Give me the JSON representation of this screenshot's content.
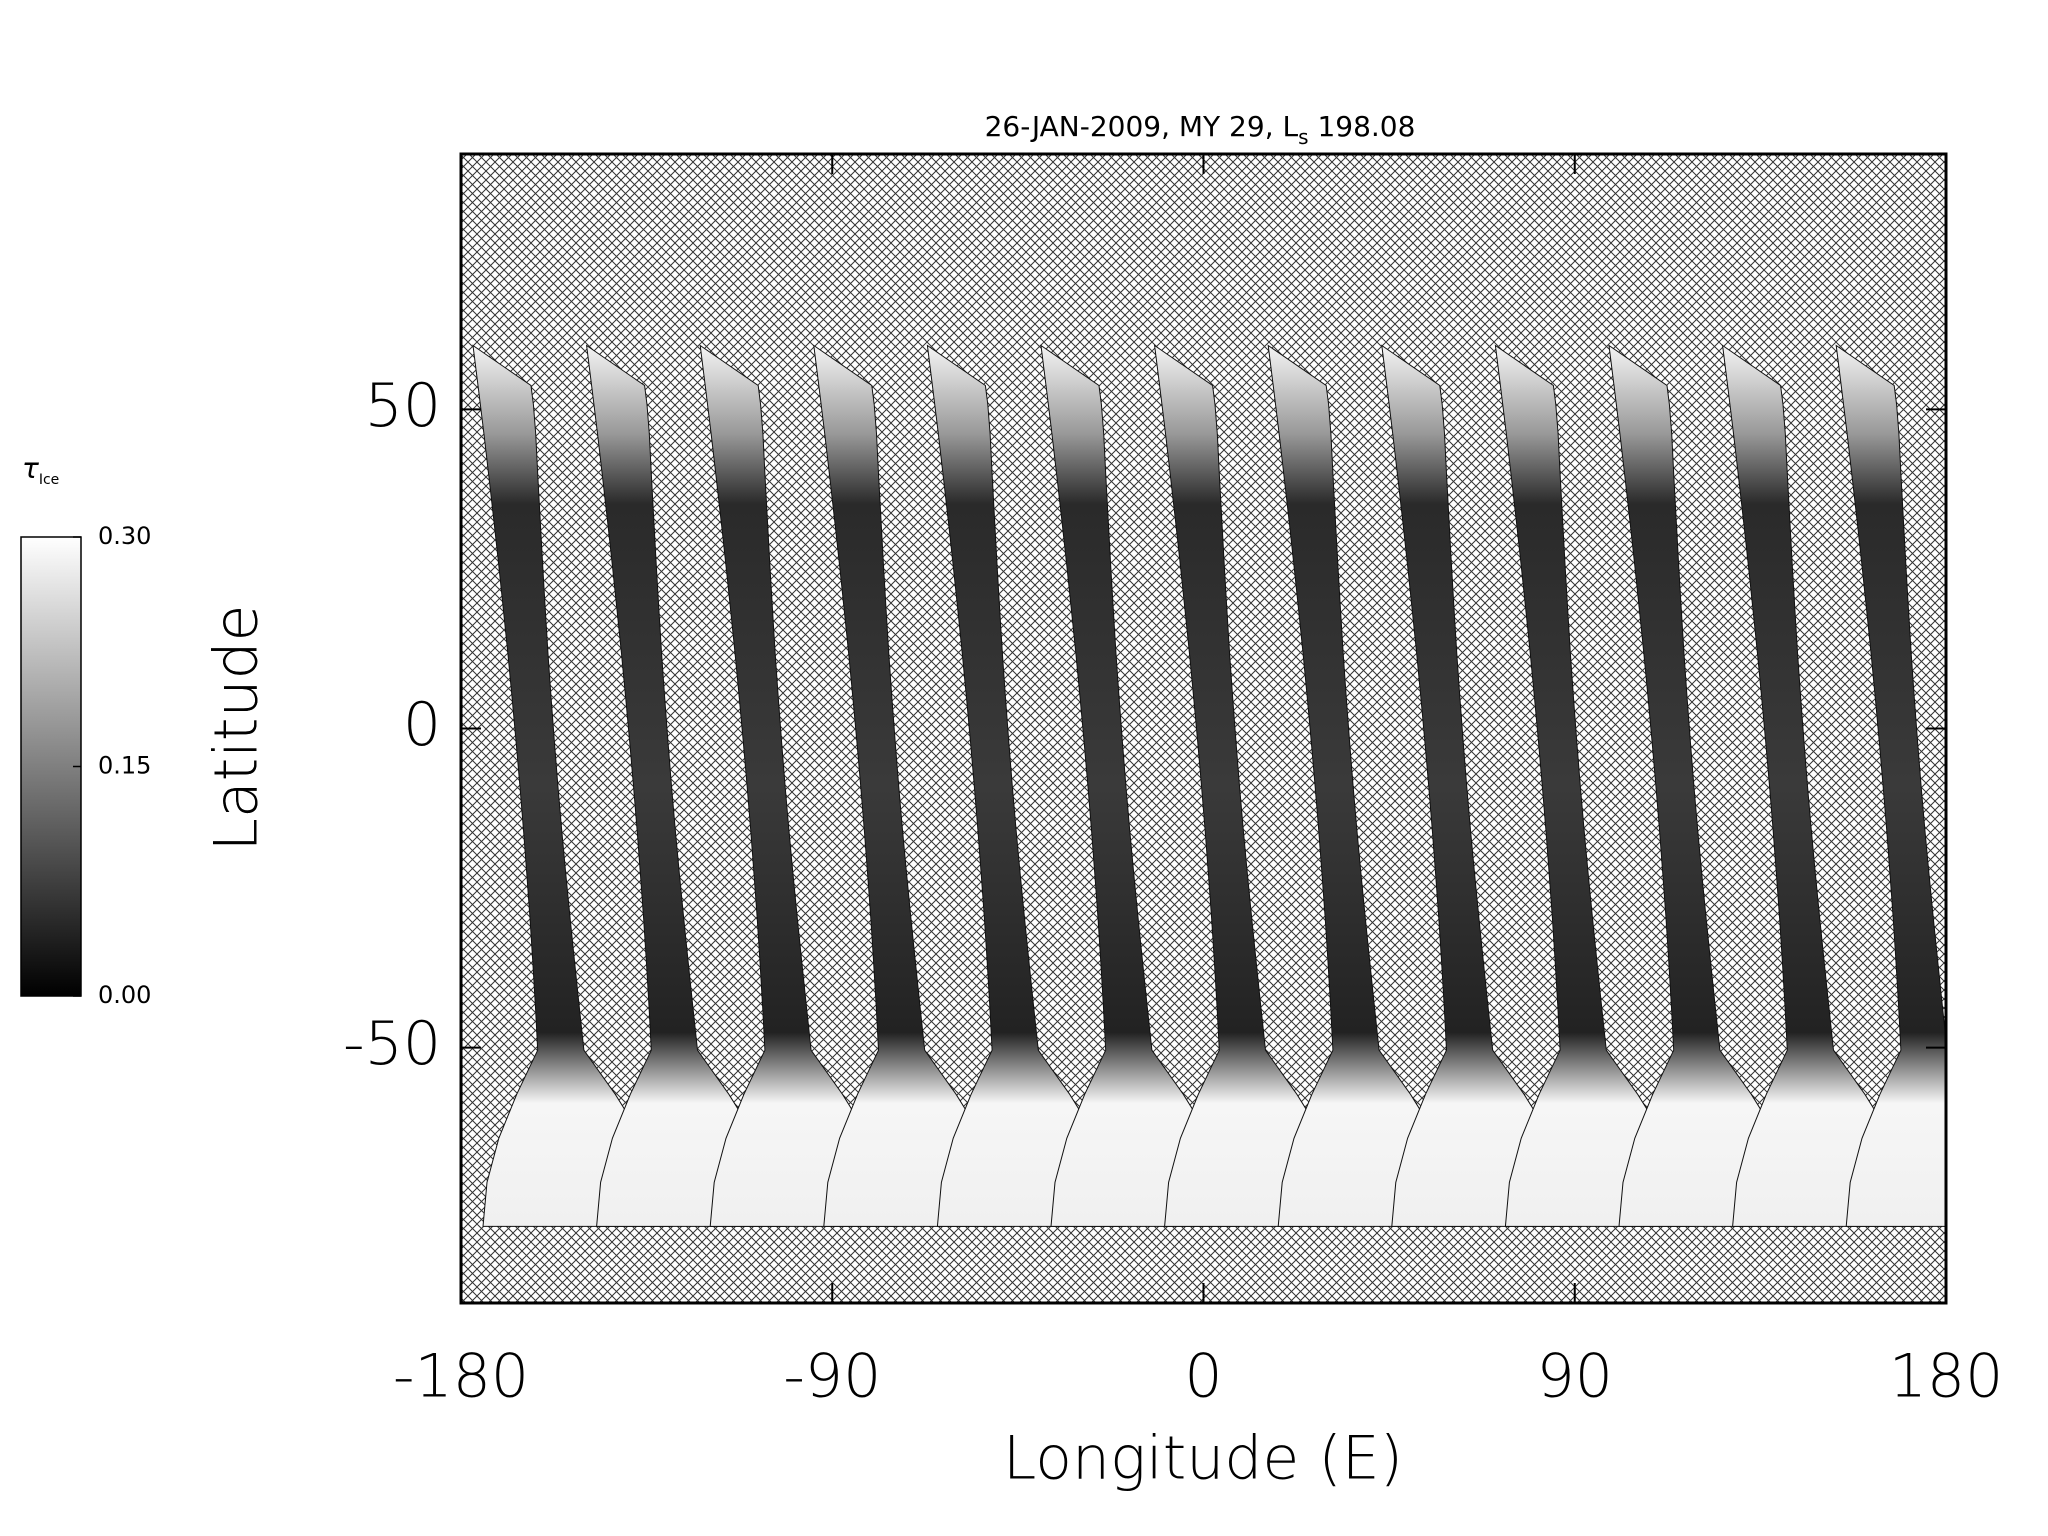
{
  "chart_data": {
    "type": "map",
    "title": [
      "26-JAN-2009, MY 29,",
      "L",
      "s",
      "198.08"
    ],
    "xlabel": "Longitude (E)",
    "ylabel": "Latitude",
    "xlim": [
      -180,
      180
    ],
    "ylim": [
      -90,
      90
    ],
    "xticks": [
      -180,
      -90,
      0,
      90,
      180
    ],
    "yticks": [
      -50,
      0,
      50
    ],
    "colorbar": {
      "label": "τ",
      "label_sub": "Ice",
      "lim": [
        0,
        0.3
      ],
      "ticks": [
        {
          "value": 0,
          "label": "0.00"
        },
        {
          "value": 0.15,
          "label": "0.15"
        },
        {
          "value": 0.3,
          "label": "0.30"
        }
      ]
    }
  }
}
